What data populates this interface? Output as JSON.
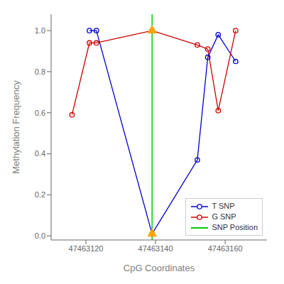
{
  "chart_data": {
    "type": "line",
    "xlabel": "CpG Coordinates",
    "ylabel": "Methylation Frequency",
    "xlim": [
      47463110,
      47463172
    ],
    "ylim": [
      -0.02,
      1.08
    ],
    "xticks": [
      47463120,
      47463140,
      47463160
    ],
    "yticks": [
      {
        "value": 0.0,
        "label": "0.0"
      },
      0.2,
      0.4,
      0.6,
      0.8,
      {
        "value": 1.0,
        "label": "1.0"
      }
    ],
    "grid": false,
    "legend": "lower right",
    "series": [
      {
        "name": "T SNP",
        "type": "line",
        "color": "#0000CC",
        "marker": "o",
        "line_style": "solid",
        "x": [
          47463121,
          47463123,
          47463139,
          47463152,
          47463155,
          47463158,
          47463163
        ],
        "values": [
          1.0,
          1.0,
          0.01,
          0.37,
          0.87,
          0.98,
          0.85
        ]
      },
      {
        "name": "G SNP",
        "type": "line",
        "color": "#CC0000",
        "marker": "o",
        "line_style": "solid",
        "x": [
          47463116,
          47463121,
          47463123,
          47463139,
          47463152,
          47463155,
          47463158,
          47463163
        ],
        "values": [
          0.59,
          0.94,
          0.94,
          1.0,
          0.93,
          0.91,
          0.61,
          1.0
        ]
      },
      {
        "name": "SNP Position",
        "type": "vline",
        "color": "#00CC00",
        "line_style": "solid",
        "x": [
          47463139
        ]
      },
      {
        "type": "scatter",
        "color": "#FFA500",
        "marker": "triangle",
        "x": [
          47463139,
          47463139
        ],
        "values": [
          1.0,
          0.01
        ]
      }
    ]
  }
}
